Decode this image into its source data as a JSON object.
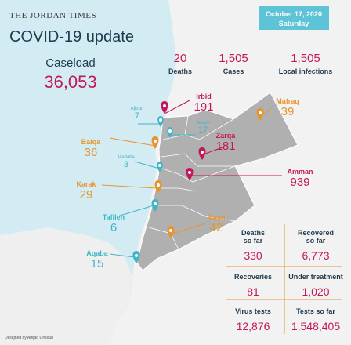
{
  "header": {
    "publication": "THE JORDAN TIMES",
    "title": "COVID-19 update",
    "date": "October 17, 2020",
    "day": "Saturday"
  },
  "caseload": {
    "label": "Caseload",
    "value": "36,053"
  },
  "daily": [
    {
      "value": "20",
      "label": "Deaths"
    },
    {
      "value": "1,505",
      "label": "Cases"
    },
    {
      "value": "1,505",
      "label": "Local infections"
    }
  ],
  "governorates": {
    "irbid": {
      "name": "Irbid",
      "value": "191"
    },
    "mafraq": {
      "name": "Mafraq",
      "value": "39"
    },
    "ajloun": {
      "name": "Ajloun",
      "value": "7"
    },
    "jerash": {
      "name": "Jerash",
      "value": "17"
    },
    "balqa": {
      "name": "Balqa",
      "value": "36"
    },
    "zarqa": {
      "name": "Zarqa",
      "value": "181"
    },
    "madaba": {
      "name": "Madaba",
      "value": "3"
    },
    "amman": {
      "name": "Amman",
      "value": "939"
    },
    "karak": {
      "name": "Karak",
      "value": "29"
    },
    "tafileh": {
      "name": "Tafileh",
      "value": "6"
    },
    "maan": {
      "name": "Maan",
      "value": "42"
    },
    "aqaba": {
      "name": "Aqaba",
      "value": "15"
    }
  },
  "totals": {
    "deaths": {
      "label1": "Deaths",
      "label2": "so far",
      "value": "330"
    },
    "recovered": {
      "label1": "Recovered",
      "label2": "so far",
      "value": "6,773"
    },
    "recoveries": {
      "label": "Recoveries",
      "value": "81"
    },
    "treatment": {
      "label": "Under treatment",
      "value": "1,020"
    },
    "virus_tests": {
      "label": "Virus tests",
      "value": "12,876"
    },
    "tests_so_far": {
      "label": "Tests so far",
      "value": "1,548,405"
    }
  },
  "credit": "Designed by Amjad Ghsoun",
  "colors": {
    "magenta": "#c2185b",
    "orange": "#e8942e",
    "teal": "#3fb6c8",
    "sea": "#d3ebf2",
    "land": "#f2f2f2",
    "jordan": "#b0b0b0",
    "navy": "#1f3a4d"
  },
  "icons": [
    "location-pin-icon"
  ]
}
